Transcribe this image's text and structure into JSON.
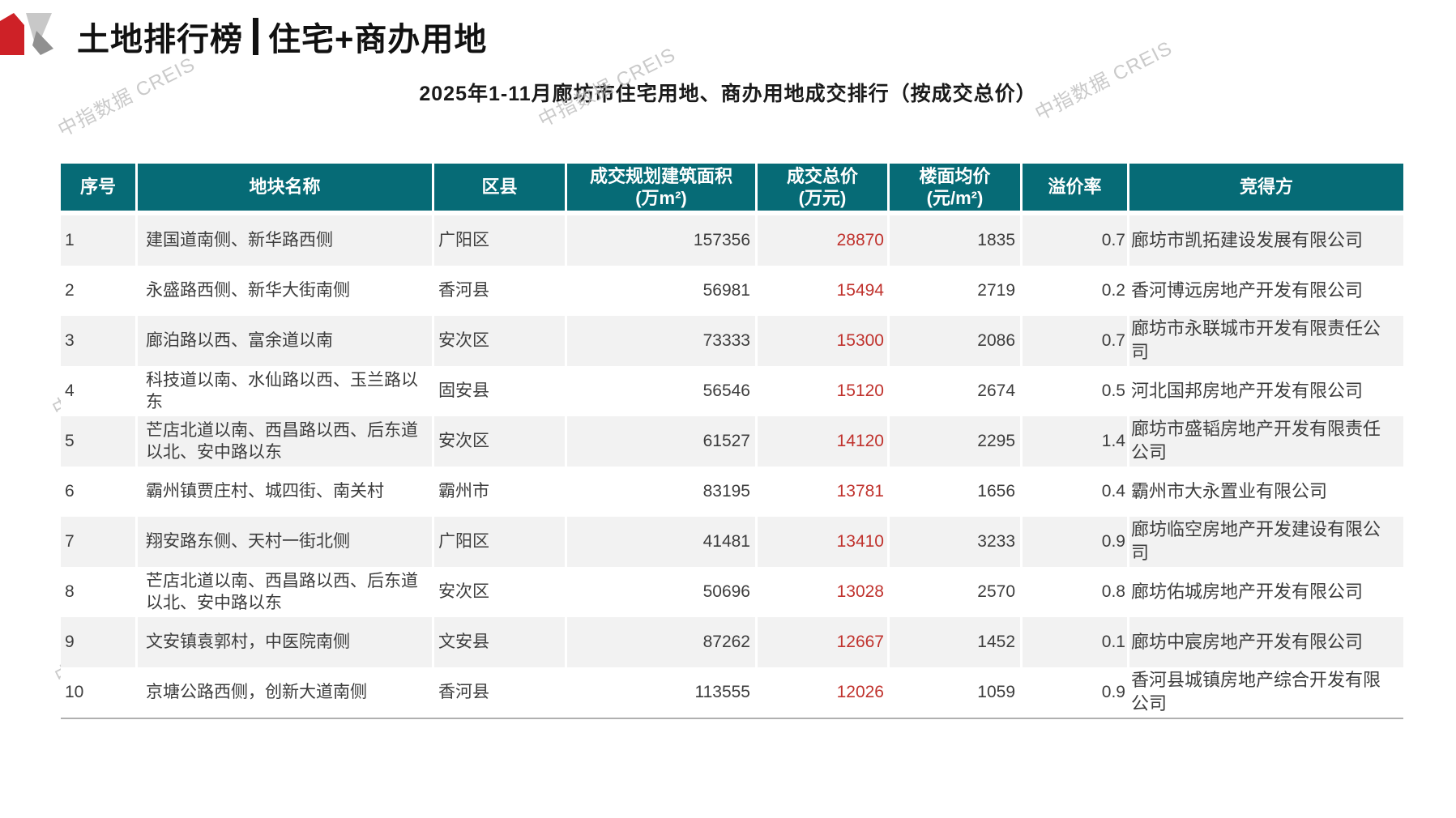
{
  "page": {
    "title_left": "土地排行榜",
    "title_right": "住宅+商办用地",
    "subtitle": "2025年1-11月廊坊市住宅用地、商办用地成交排行（按成交总价）",
    "watermark": "中指数据 CREIS"
  },
  "colors": {
    "table_header_bg": "#066b76",
    "price_red": "#c0322d",
    "logo_red": "#ce2127",
    "logo_gray_light": "#c8c8c8",
    "logo_gray_dark": "#909090",
    "row_stripe": "#f2f2f2",
    "bottom_rule": "#b0b0b0"
  },
  "table": {
    "columns": [
      {
        "key": "rank",
        "label": "序号"
      },
      {
        "key": "name",
        "label": "地块名称"
      },
      {
        "key": "district",
        "label": "区县"
      },
      {
        "key": "area",
        "label": "成交规划建筑面积\n(万m²)"
      },
      {
        "key": "price",
        "label": "成交总价\n(万元)"
      },
      {
        "key": "floor",
        "label": "楼面均价\n(元/m²)"
      },
      {
        "key": "premium",
        "label": "溢价率"
      },
      {
        "key": "winner",
        "label": "竞得方"
      }
    ],
    "rows": [
      {
        "rank": "1",
        "name": "建国道南侧、新华路西侧",
        "district": "广阳区",
        "area": "157356",
        "price": "28870",
        "floor": "1835",
        "premium": "0.7",
        "winner": "廊坊市凯拓建设发展有限公司"
      },
      {
        "rank": "2",
        "name": "永盛路西侧、新华大街南侧",
        "district": "香河县",
        "area": "56981",
        "price": "15494",
        "floor": "2719",
        "premium": "0.2",
        "winner": "香河博远房地产开发有限公司"
      },
      {
        "rank": "3",
        "name": "廊泊路以西、富余道以南",
        "district": "安次区",
        "area": "73333",
        "price": "15300",
        "floor": "2086",
        "premium": "0.7",
        "winner": "廊坊市永联城市开发有限责任公司"
      },
      {
        "rank": "4",
        "name": "科技道以南、水仙路以西、玉兰路以东",
        "district": "固安县",
        "area": "56546",
        "price": "15120",
        "floor": "2674",
        "premium": "0.5",
        "winner": "河北国邦房地产开发有限公司"
      },
      {
        "rank": "5",
        "name": "芒店北道以南、西昌路以西、后东道以北、安中路以东",
        "district": "安次区",
        "area": "61527",
        "price": "14120",
        "floor": "2295",
        "premium": "1.4",
        "winner": "廊坊市盛韬房地产开发有限责任公司"
      },
      {
        "rank": "6",
        "name": "霸州镇贾庄村、城四街、南关村",
        "district": "霸州市",
        "area": "83195",
        "price": "13781",
        "floor": "1656",
        "premium": "0.4",
        "winner": "霸州市大永置业有限公司"
      },
      {
        "rank": "7",
        "name": "翔安路东侧、天村一街北侧",
        "district": "广阳区",
        "area": "41481",
        "price": "13410",
        "floor": "3233",
        "premium": "0.9",
        "winner": "廊坊临空房地产开发建设有限公司"
      },
      {
        "rank": "8",
        "name": "芒店北道以南、西昌路以西、后东道以北、安中路以东",
        "district": "安次区",
        "area": "50696",
        "price": "13028",
        "floor": "2570",
        "premium": "0.8",
        "winner": "廊坊佑城房地产开发有限公司"
      },
      {
        "rank": "9",
        "name": "文安镇袁郭村，中医院南侧",
        "district": "文安县",
        "area": "87262",
        "price": "12667",
        "floor": "1452",
        "premium": "0.1",
        "winner": "廊坊中宸房地产开发有限公司"
      },
      {
        "rank": "10",
        "name": "京塘公路西侧，创新大道南侧",
        "district": "香河县",
        "area": "113555",
        "price": "12026",
        "floor": "1059",
        "premium": "0.9",
        "winner": "香河县城镇房地产综合开发有限公司"
      }
    ]
  }
}
